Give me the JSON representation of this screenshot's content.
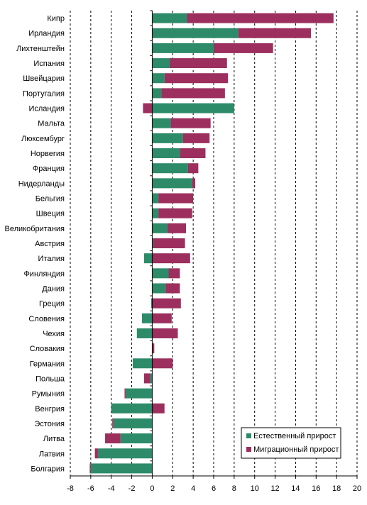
{
  "chart_data": {
    "type": "bar",
    "orientation": "horizontal",
    "stacking": "diverging-stacked",
    "title": "",
    "xlabel": "",
    "ylabel": "",
    "xlim": [
      -8,
      20
    ],
    "x_ticks": [
      "-8",
      "-6",
      "-4",
      "-2",
      "0",
      "2",
      "4",
      "6",
      "8",
      "10",
      "12",
      "14",
      "16",
      "18",
      "20"
    ],
    "grid": "vertical dashed",
    "legend_position": "bottom-right",
    "categories": [
      "Кипр",
      "Ирландия",
      "Лихтенштейн",
      "Испания",
      "Швейцария",
      "Португалия",
      "Исландия",
      "Мальта",
      "Люксембург",
      "Норвегия",
      "Франция",
      "Нидерланды",
      "Бельгия",
      "Швеция",
      "Великобритания",
      "Австрия",
      "Италия",
      "Финляндия",
      "Дания",
      "Греция",
      "Словения",
      "Чехия",
      "Словакия",
      "Германия",
      "Польша",
      "Румыния",
      "Венгрия",
      "Эстония",
      "Литва",
      "Латвия",
      "Болгария"
    ],
    "series": [
      {
        "name": "Естественный прирост",
        "color": "#2E8B6A",
        "values": [
          3.4,
          8.4,
          6.0,
          1.7,
          1.2,
          0.9,
          8.0,
          1.8,
          3.0,
          2.7,
          3.5,
          3.9,
          0.6,
          0.6,
          1.5,
          0.1,
          -0.8,
          1.6,
          1.3,
          -0.1,
          -1.0,
          -1.5,
          0.0,
          -1.9,
          -0.2,
          -2.6,
          -4.0,
          -3.8,
          -3.1,
          -5.3,
          -6.0
        ]
      },
      {
        "name": "Миграционный прирост",
        "color": "#9C2F5E",
        "values": [
          14.3,
          7.1,
          5.8,
          5.6,
          6.2,
          6.2,
          -0.9,
          3.9,
          2.6,
          2.5,
          1.0,
          0.3,
          3.4,
          3.3,
          1.8,
          3.1,
          3.7,
          1.1,
          1.4,
          2.8,
          1.9,
          2.5,
          0.2,
          2.0,
          -0.6,
          -0.1,
          1.2,
          -0.1,
          -1.5,
          -0.3,
          -0.1
        ]
      }
    ]
  }
}
